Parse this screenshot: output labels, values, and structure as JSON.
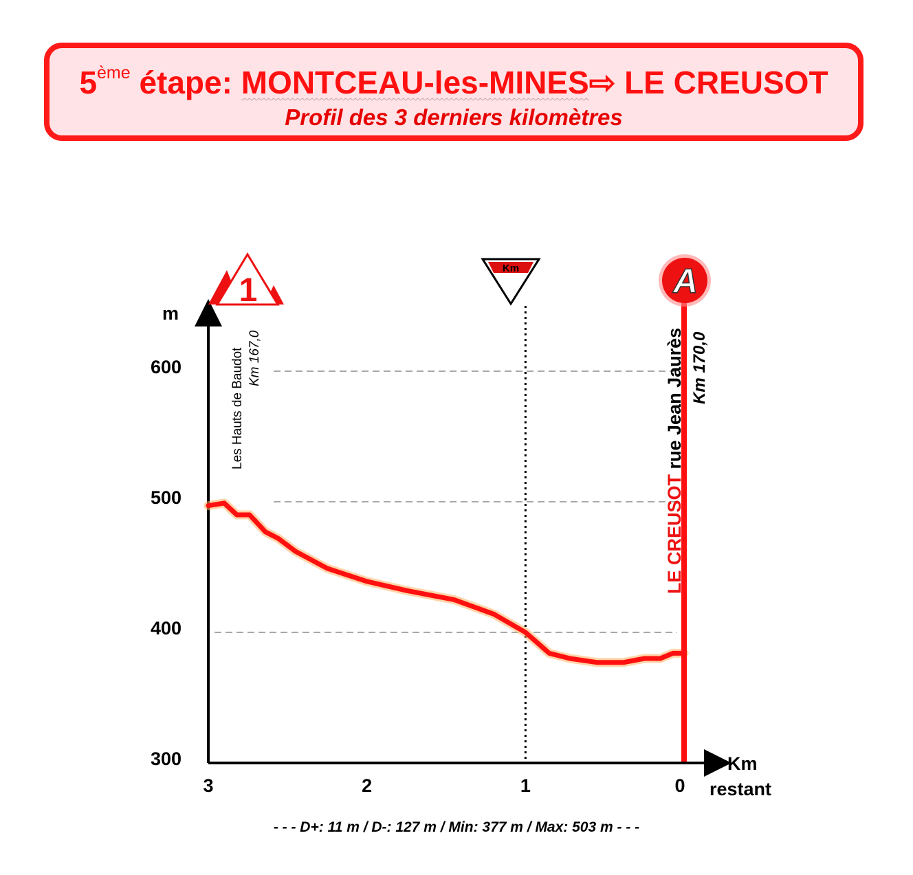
{
  "title": {
    "stage_number": "5",
    "stage_suffix": "ème",
    "stage_word": " étape: ",
    "start_town": "MONTCEAU-les-MINES",
    "arrow": "⇨",
    "finish_town": " LE CREUSOT",
    "subtitle": "Profil des 3 derniers kilomètres"
  },
  "stats": "- - - D+: 11 m / D-: 127 m / Min: 377 m / Max: 503 m - - -",
  "colors": {
    "profile": "#ff1010",
    "profile_glow": "#ffb060",
    "frame": "#ff1a1a",
    "title_bg": "#ffe3e6"
  },
  "chart_data": {
    "type": "line",
    "xlabel": "Km restant",
    "ylabel": "m",
    "xlim": [
      3,
      0
    ],
    "ylim": [
      300,
      650
    ],
    "x_ticks": [
      3,
      2,
      1,
      0
    ],
    "x_tick_labels": [
      "3",
      "2",
      "1",
      "0"
    ],
    "y_ticks": [
      300,
      400,
      500,
      600
    ],
    "y_tick_labels": [
      "300",
      "400",
      "500",
      "600"
    ],
    "gridlines_y": [
      400,
      500,
      600
    ],
    "series": [
      {
        "x": [
          3.0,
          2.9,
          2.82,
          2.74,
          2.64,
          2.56,
          2.45,
          2.25,
          2.0,
          1.75,
          1.45,
          1.2,
          1.0,
          0.85,
          0.72,
          0.55,
          0.38,
          0.25,
          0.15,
          0.07,
          0.0
        ],
        "y": [
          497,
          499,
          490,
          490,
          477,
          472,
          462,
          449,
          439,
          432,
          425,
          414,
          400,
          384,
          380,
          377,
          377,
          380,
          380,
          384,
          384
        ]
      }
    ],
    "annotations": {
      "climb": {
        "category": "1",
        "name": "Les Hauts de Baudot",
        "km": "Km 167,0"
      },
      "flamme_rouge": {
        "label": "Km"
      },
      "finish": {
        "badge": "A",
        "town": "LE CREUSOT",
        "street": " rue Jean Jaurès",
        "km": "Km 170,0"
      }
    }
  }
}
